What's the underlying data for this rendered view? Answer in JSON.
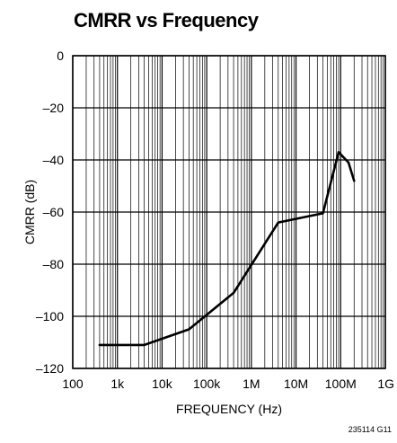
{
  "chart_data": {
    "type": "line",
    "title": "CMRR vs Frequency",
    "xlabel": "FREQUENCY (Hz)",
    "ylabel": "CMRR (dB)",
    "x_scale": "log",
    "xlim": [
      100,
      1000000000
    ],
    "ylim": [
      -120,
      0
    ],
    "x_ticks": [
      100,
      1000,
      10000,
      100000,
      1000000,
      10000000,
      100000000,
      1000000000
    ],
    "x_tick_labels": [
      "100",
      "1k",
      "10k",
      "100k",
      "1M",
      "10M",
      "100M",
      "1G"
    ],
    "y_ticks": [
      0,
      -20,
      -40,
      -60,
      -80,
      -100,
      -120
    ],
    "y_tick_labels": [
      "0",
      "–20",
      "–40",
      "–60",
      "–80",
      "–100",
      "–120"
    ],
    "grid": true,
    "series": [
      {
        "x": [
          400,
          4000,
          40000,
          400000,
          4000000,
          40000000,
          90000000,
          150000000,
          200000000
        ],
        "y": [
          -111,
          -111,
          -105,
          -91,
          -64,
          -60.5,
          -37,
          -41,
          -48
        ]
      }
    ],
    "note": "235114 G11"
  }
}
